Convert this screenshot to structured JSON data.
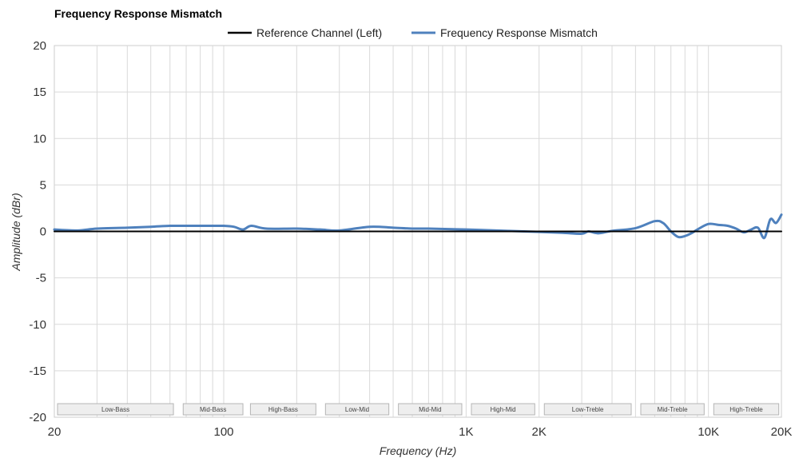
{
  "chart_data": {
    "type": "line",
    "title": "Frequency Response Mismatch",
    "xlabel": "Frequency (Hz)",
    "ylabel": "Amplitude (dBr)",
    "x_scale": "log",
    "xlim": [
      20,
      20000
    ],
    "ylim": [
      -20,
      20
    ],
    "y_ticks": [
      20,
      15,
      10,
      5,
      0,
      -5,
      -10,
      -15,
      -20
    ],
    "x_ticks": [
      {
        "value": 20,
        "label": "20"
      },
      {
        "value": 100,
        "label": "100"
      },
      {
        "value": 1000,
        "label": "1K"
      },
      {
        "value": 2000,
        "label": "2K"
      },
      {
        "value": 10000,
        "label": "10K"
      },
      {
        "value": 20000,
        "label": "20K"
      }
    ],
    "grid": true,
    "legend_position": "top-center",
    "bands": [
      {
        "label": "Low-Bass",
        "from": 20,
        "to": 62
      },
      {
        "label": "Mid-Bass",
        "from": 66,
        "to": 120
      },
      {
        "label": "High-Bass",
        "from": 125,
        "to": 240
      },
      {
        "label": "Low-Mid",
        "from": 255,
        "to": 480
      },
      {
        "label": "Mid-Mid",
        "from": 510,
        "to": 960
      },
      {
        "label": "High-Mid",
        "from": 1020,
        "to": 1920
      },
      {
        "label": "Low-Treble",
        "from": 2040,
        "to": 4800
      },
      {
        "label": "Mid-Treble",
        "from": 5100,
        "to": 9600
      },
      {
        "label": "High-Treble",
        "from": 10200,
        "to": 19500
      }
    ],
    "series": [
      {
        "name": "Reference Channel (Left)",
        "color": "#000000",
        "x": [
          20,
          20000
        ],
        "y": [
          0,
          0
        ]
      },
      {
        "name": "Frequency Response Mismatch",
        "color": "#4f81bd",
        "x": [
          20,
          25,
          30,
          40,
          50,
          60,
          70,
          80,
          90,
          100,
          110,
          120,
          130,
          150,
          200,
          250,
          300,
          400,
          500,
          600,
          700,
          1000,
          1500,
          2000,
          2500,
          3000,
          3200,
          3500,
          4000,
          5000,
          6000,
          6500,
          7000,
          7500,
          8000,
          8500,
          9000,
          10000,
          11000,
          12000,
          13000,
          14000,
          15000,
          16000,
          17000,
          18000,
          19000,
          20000
        ],
        "y": [
          0.2,
          0.1,
          0.3,
          0.4,
          0.5,
          0.6,
          0.6,
          0.6,
          0.6,
          0.6,
          0.5,
          0.2,
          0.6,
          0.3,
          0.3,
          0.2,
          0.1,
          0.5,
          0.4,
          0.3,
          0.3,
          0.2,
          0.05,
          -0.05,
          -0.15,
          -0.25,
          0.0,
          -0.2,
          0.05,
          0.35,
          1.1,
          0.9,
          0.0,
          -0.6,
          -0.5,
          -0.2,
          0.2,
          0.8,
          0.7,
          0.6,
          0.3,
          -0.1,
          0.2,
          0.4,
          -0.7,
          1.3,
          0.9,
          1.8
        ]
      }
    ]
  }
}
